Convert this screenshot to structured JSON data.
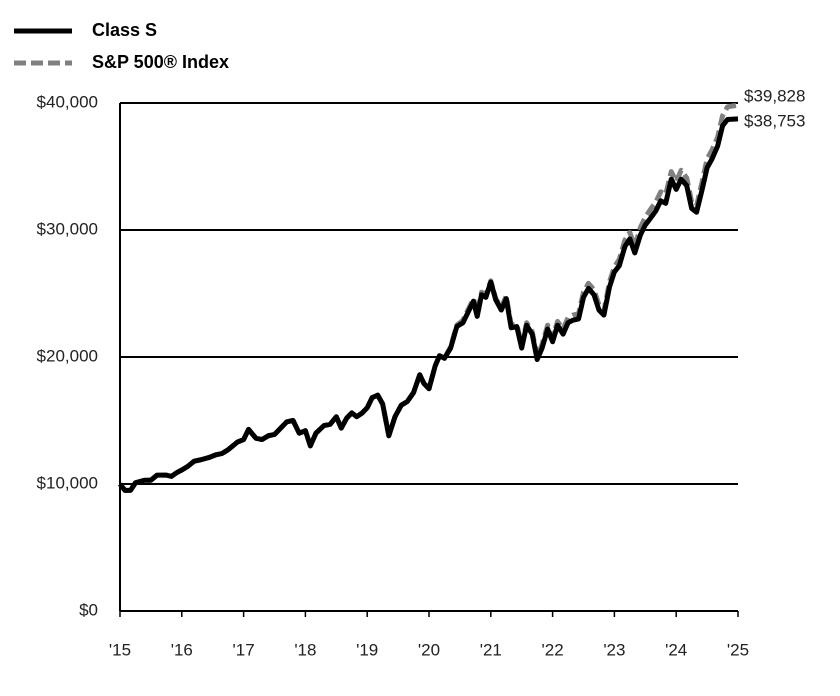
{
  "chart_data": {
    "type": "line",
    "x": [
      2015,
      2015.08,
      2015.17,
      2015.25,
      2015.4,
      2015.5,
      2015.6,
      2015.75,
      2015.83,
      2015.92,
      2016,
      2016.1,
      2016.2,
      2016.3,
      2016.45,
      2016.55,
      2016.65,
      2016.75,
      2016.9,
      2017,
      2017.08,
      2017.2,
      2017.3,
      2017.4,
      2017.5,
      2017.6,
      2017.7,
      2017.8,
      2017.9,
      2018,
      2018.08,
      2018.17,
      2018.3,
      2018.4,
      2018.5,
      2018.58,
      2018.67,
      2018.75,
      2018.83,
      2018.92,
      2019,
      2019.08,
      2019.17,
      2019.25,
      2019.35,
      2019.45,
      2019.55,
      2019.65,
      2019.75,
      2019.85,
      2019.92,
      2020,
      2020.1,
      2020.17,
      2020.25,
      2020.35,
      2020.45,
      2020.55,
      2020.62,
      2020.72,
      2020.78,
      2020.85,
      2020.92,
      2021,
      2021.08,
      2021.17,
      2021.25,
      2021.33,
      2021.42,
      2021.5,
      2021.58,
      2021.67,
      2021.75,
      2021.83,
      2021.92,
      2022,
      2022.08,
      2022.17,
      2022.25,
      2022.33,
      2022.42,
      2022.5,
      2022.58,
      2022.67,
      2022.75,
      2022.83,
      2022.92,
      2023,
      2023.08,
      2023.17,
      2023.25,
      2023.33,
      2023.42,
      2023.5,
      2023.58,
      2023.67,
      2023.75,
      2023.83,
      2023.92,
      2024,
      2024.08,
      2024.17,
      2024.25,
      2024.33,
      2024.42,
      2024.5,
      2024.58,
      2024.67,
      2024.75,
      2024.83,
      2025
    ],
    "series": [
      {
        "name": "S&P 500® Index",
        "color": "#808080",
        "dashed": true,
        "end_label": "$39,828",
        "values": [
          10000,
          9500,
          9500,
          10100,
          10300,
          10300,
          10700,
          10700,
          10600,
          10900,
          11100,
          11400,
          11800,
          11900,
          12100,
          12300,
          12400,
          12700,
          13300,
          13500,
          14300,
          13600,
          13500,
          13800,
          13900,
          14400,
          14900,
          15000,
          14000,
          14200,
          13000,
          14000,
          14600,
          14700,
          15300,
          14400,
          15200,
          15600,
          15300,
          15600,
          16000,
          16800,
          17000,
          16300,
          13800,
          15300,
          16200,
          16500,
          17200,
          18600,
          17900,
          17500,
          19300,
          20100,
          19900,
          20800,
          22500,
          22900,
          23600,
          24600,
          23400,
          25100,
          24900,
          26000,
          24600,
          23900,
          24800,
          22500,
          22600,
          20900,
          22700,
          22000,
          20000,
          21000,
          22500,
          21500,
          22800,
          22200,
          23100,
          23300,
          23400,
          25100,
          25800,
          25300,
          24100,
          23600,
          25900,
          27100,
          27700,
          29200,
          29800,
          28700,
          30200,
          31000,
          31600,
          32200,
          33000,
          32800,
          34600,
          33800,
          34700,
          34100,
          32200,
          31900,
          33800,
          35600,
          36300,
          37300,
          39000,
          39700,
          39828
        ]
      },
      {
        "name": "Class S",
        "color": "#000000",
        "dashed": false,
        "end_label": "$38,753",
        "values": [
          10000,
          9500,
          9500,
          10100,
          10300,
          10300,
          10700,
          10700,
          10600,
          10900,
          11100,
          11400,
          11800,
          11900,
          12100,
          12300,
          12400,
          12700,
          13300,
          13500,
          14300,
          13600,
          13500,
          13800,
          13900,
          14400,
          14900,
          15000,
          14000,
          14200,
          13000,
          14000,
          14600,
          14700,
          15300,
          14400,
          15200,
          15600,
          15300,
          15600,
          16000,
          16800,
          17000,
          16300,
          13800,
          15300,
          16200,
          16500,
          17200,
          18600,
          17900,
          17500,
          19300,
          20100,
          19900,
          20700,
          22400,
          22700,
          23400,
          24400,
          23200,
          24900,
          24700,
          25900,
          24500,
          23700,
          24600,
          22300,
          22400,
          20700,
          22500,
          21800,
          19800,
          20700,
          22200,
          21200,
          22500,
          21800,
          22700,
          22900,
          23000,
          24700,
          25400,
          24900,
          23700,
          23300,
          25500,
          26700,
          27200,
          28700,
          29300,
          28200,
          29600,
          30400,
          30900,
          31500,
          32300,
          32100,
          34000,
          33200,
          34000,
          33500,
          31700,
          31400,
          33200,
          34900,
          35600,
          36600,
          38200,
          38700,
          38753
        ]
      }
    ],
    "legend_order": [
      1,
      0
    ],
    "legend": "top-left",
    "xlim": [
      2015,
      2025
    ],
    "xticks": [
      {
        "value": 2015,
        "label": "'15"
      },
      {
        "value": 2016,
        "label": "'16"
      },
      {
        "value": 2017,
        "label": "'17"
      },
      {
        "value": 2018,
        "label": "'18"
      },
      {
        "value": 2019,
        "label": "'19"
      },
      {
        "value": 2020,
        "label": "'20"
      },
      {
        "value": 2021,
        "label": "'21"
      },
      {
        "value": 2022,
        "label": "'22"
      },
      {
        "value": 2023,
        "label": "'23"
      },
      {
        "value": 2024,
        "label": "'24"
      },
      {
        "value": 2025,
        "label": "'25"
      }
    ],
    "ylim": [
      0,
      40000
    ],
    "yticks": [
      {
        "value": 0,
        "label": "$0"
      },
      {
        "value": 10000,
        "label": "$10,000"
      },
      {
        "value": 20000,
        "label": "$20,000"
      },
      {
        "value": 30000,
        "label": "$30,000"
      },
      {
        "value": 40000,
        "label": "$40,000"
      }
    ],
    "grid": true
  }
}
